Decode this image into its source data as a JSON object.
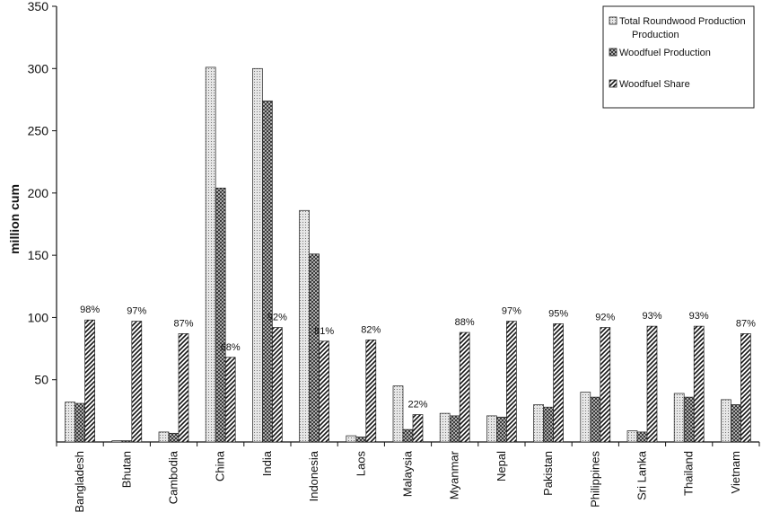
{
  "chart_data": {
    "type": "bar",
    "title": "",
    "xlabel": "",
    "ylabel": "million cum",
    "ylim": [
      0,
      350
    ],
    "yticks": [
      50,
      100,
      150,
      200,
      250,
      300,
      350
    ],
    "grid": false,
    "legend_position": "top-right",
    "categories": [
      "Bangladesh",
      "Bhutan",
      "Cambodia",
      "China",
      "India",
      "Indonesia",
      "Laos",
      "Malaysia",
      "Myanmar",
      "Nepal",
      "Pakistan",
      "Philippines",
      "Sri Lanka",
      "Thailand",
      "Vietnam"
    ],
    "series": [
      {
        "name": "Total Roundwood Production",
        "pattern": "dots",
        "values": [
          32,
          1,
          8,
          301,
          300,
          186,
          5,
          45,
          23,
          21,
          30,
          40,
          9,
          39,
          34
        ]
      },
      {
        "name": "Woodfuel Production",
        "pattern": "crosshatch",
        "values": [
          31,
          1,
          7,
          204,
          274,
          151,
          4,
          10,
          21,
          20,
          28,
          36,
          8,
          36,
          30
        ]
      },
      {
        "name": "Woodfuel Share",
        "pattern": "diagonal",
        "values": [
          98,
          97,
          87,
          68,
          92,
          81,
          82,
          22,
          88,
          97,
          95,
          92,
          93,
          93,
          87
        ]
      }
    ],
    "share_labels": [
      "98%",
      "97%",
      "87%",
      "68%",
      "92%",
      "81%",
      "82%",
      "22%",
      "88%",
      "97%",
      "95%",
      "92%",
      "93%",
      "93%",
      "87%"
    ]
  }
}
